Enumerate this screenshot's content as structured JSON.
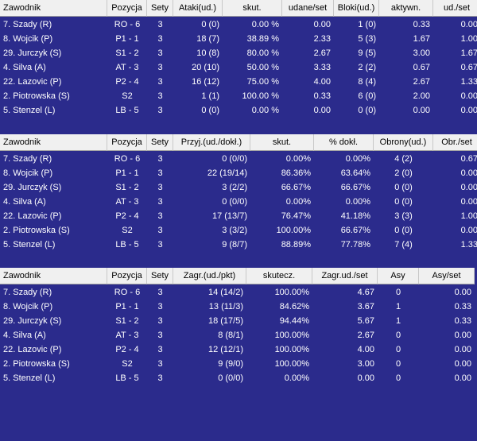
{
  "tables": [
    {
      "columns": [
        "Zawodnik",
        "Pozycja",
        "Sety",
        "Ataki(ud.)",
        "skut.",
        "udane/set",
        "Bloki(ud.)",
        "aktywn.",
        "ud./set"
      ],
      "rows": [
        [
          "7. Szady (R)",
          "RO - 6",
          "3",
          "0 (0)",
          "0.00 %",
          "0.00",
          "1 (0)",
          "0.33",
          "0.00"
        ],
        [
          "8. Wojcik (P)",
          "P1 - 1",
          "3",
          "18 (7)",
          "38.89 %",
          "2.33",
          "5 (3)",
          "1.67",
          "1.00"
        ],
        [
          "29. Jurczyk (S)",
          "S1 - 2",
          "3",
          "10 (8)",
          "80.00 %",
          "2.67",
          "9 (5)",
          "3.00",
          "1.67"
        ],
        [
          "4. Silva (A)",
          "AT - 3",
          "3",
          "20 (10)",
          "50.00 %",
          "3.33",
          "2 (2)",
          "0.67",
          "0.67"
        ],
        [
          "22. Lazovic (P)",
          "P2 - 4",
          "3",
          "16 (12)",
          "75.00 %",
          "4.00",
          "8 (4)",
          "2.67",
          "1.33"
        ],
        [
          "2. Piotrowska (S)",
          "S2",
          "3",
          "1 (1)",
          "100.00 %",
          "0.33",
          "6 (0)",
          "2.00",
          "0.00"
        ],
        [
          "5. Stenzel (L)",
          "LB - 5",
          "3",
          "0 (0)",
          "0.00 %",
          "0.00",
          "0 (0)",
          "0.00",
          "0.00"
        ]
      ]
    },
    {
      "columns": [
        "Zawodnik",
        "Pozycja",
        "Sety",
        "Przyj.(ud./dokł.)",
        "skut.",
        "% dokł.",
        "Obrony(ud.)",
        "Obr./set"
      ],
      "rows": [
        [
          "7. Szady (R)",
          "RO - 6",
          "3",
          "0 (0/0)",
          "0.00%",
          "0.00%",
          "4 (2)",
          "0.67"
        ],
        [
          "8. Wojcik (P)",
          "P1 - 1",
          "3",
          "22 (19/14)",
          "86.36%",
          "63.64%",
          "2 (0)",
          "0.00"
        ],
        [
          "29. Jurczyk (S)",
          "S1 - 2",
          "3",
          "3 (2/2)",
          "66.67%",
          "66.67%",
          "0 (0)",
          "0.00"
        ],
        [
          "4. Silva (A)",
          "AT - 3",
          "3",
          "0 (0/0)",
          "0.00%",
          "0.00%",
          "0 (0)",
          "0.00"
        ],
        [
          "22. Lazovic (P)",
          "P2 - 4",
          "3",
          "17 (13/7)",
          "76.47%",
          "41.18%",
          "3 (3)",
          "1.00"
        ],
        [
          "2. Piotrowska (S)",
          "S2",
          "3",
          "3 (3/2)",
          "100.00%",
          "66.67%",
          "0 (0)",
          "0.00"
        ],
        [
          "5. Stenzel (L)",
          "LB - 5",
          "3",
          "9 (8/7)",
          "88.89%",
          "77.78%",
          "7 (4)",
          "1.33"
        ]
      ]
    },
    {
      "columns": [
        "Zawodnik",
        "Pozycja",
        "Sety",
        "Zagr.(ud./pkt)",
        "skutecz.",
        "Zagr.ud./set",
        "Asy",
        "Asy/set"
      ],
      "rows": [
        [
          "7. Szady (R)",
          "RO - 6",
          "3",
          "14 (14/2)",
          "100.00%",
          "4.67",
          "0",
          "0.00"
        ],
        [
          "8. Wojcik (P)",
          "P1 - 1",
          "3",
          "13 (11/3)",
          "84.62%",
          "3.67",
          "1",
          "0.33"
        ],
        [
          "29. Jurczyk (S)",
          "S1 - 2",
          "3",
          "18 (17/5)",
          "94.44%",
          "5.67",
          "1",
          "0.33"
        ],
        [
          "4. Silva (A)",
          "AT - 3",
          "3",
          "8 (8/1)",
          "100.00%",
          "2.67",
          "0",
          "0.00"
        ],
        [
          "22. Lazovic (P)",
          "P2 - 4",
          "3",
          "12 (12/1)",
          "100.00%",
          "4.00",
          "0",
          "0.00"
        ],
        [
          "2. Piotrowska (S)",
          "S2",
          "3",
          "9 (9/0)",
          "100.00%",
          "3.00",
          "0",
          "0.00"
        ],
        [
          "5. Stenzel (L)",
          "LB - 5",
          "3",
          "0 (0/0)",
          "0.00%",
          "0.00",
          "0",
          "0.00"
        ]
      ]
    }
  ]
}
